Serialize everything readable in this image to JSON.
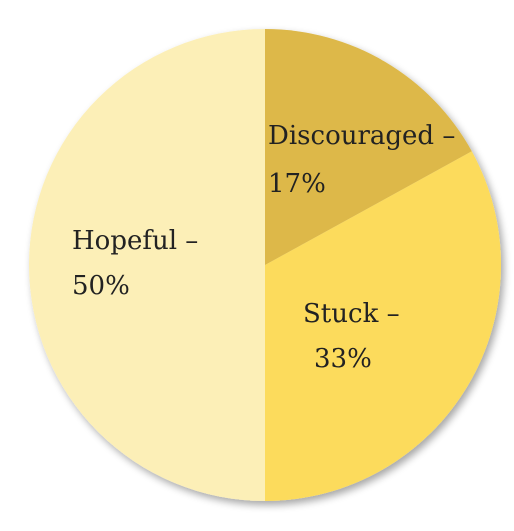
{
  "chart_data": {
    "type": "pie",
    "start_angle_deg": 0,
    "direction": "clockwise",
    "slices": [
      {
        "label_line1": "Discouraged –",
        "label_line2": "17%",
        "value": 17,
        "color": "#DDB84A"
      },
      {
        "label_line1": "Stuck –",
        "label_line2": "33%",
        "value": 33,
        "color": "#FCDB5C"
      },
      {
        "label_line1": "Hopeful –",
        "label_line2": "50%",
        "value": 50,
        "color": "#FCEFB7"
      }
    ]
  }
}
